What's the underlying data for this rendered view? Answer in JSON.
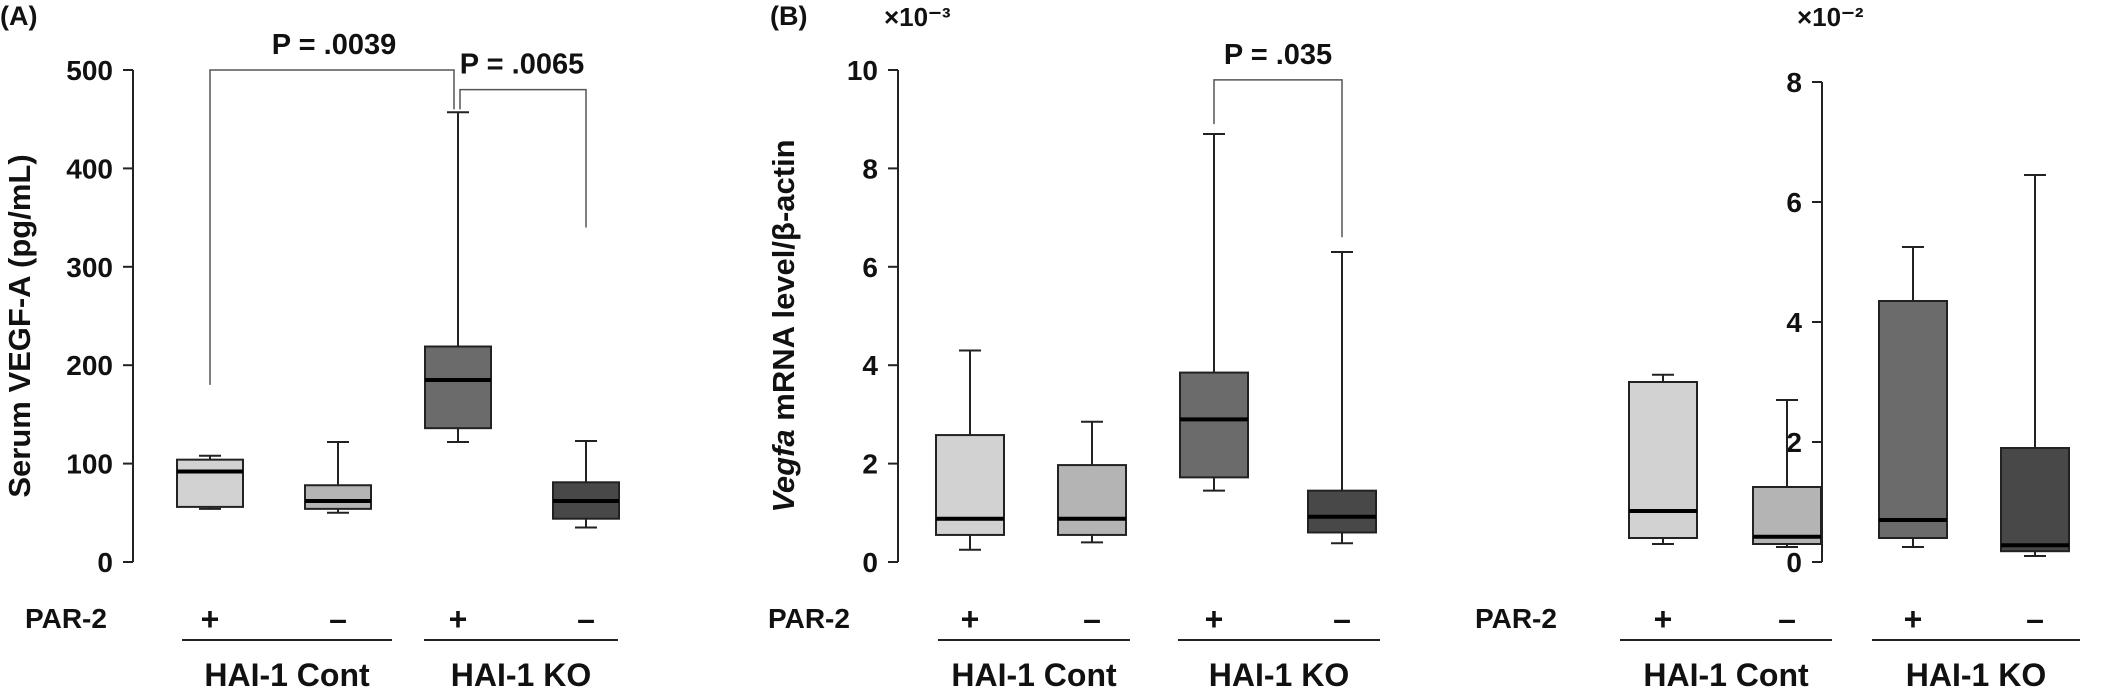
{
  "chart_data": [
    {
      "type": "box",
      "panel_label": "(A)",
      "ylabel": "Serum VEGF-A (pg/mL)",
      "exponent_label": "",
      "ylim": [
        0,
        500
      ],
      "yticks": [
        0,
        100,
        200,
        300,
        400,
        500
      ],
      "par2_label": "PAR-2",
      "categories": [
        "+",
        "–",
        "+",
        "–"
      ],
      "groups": [
        {
          "name": "HAI-1 Cont",
          "members": [
            0,
            1
          ]
        },
        {
          "name": "HAI-1 KO",
          "members": [
            2,
            3
          ]
        }
      ],
      "boxes": [
        {
          "min": 54,
          "q1": 56,
          "median": 92,
          "q3": 104,
          "max": 108,
          "color": "#d2d2d2"
        },
        {
          "min": 50,
          "q1": 54,
          "median": 62,
          "q3": 78,
          "max": 122,
          "color": "#b4b4b4"
        },
        {
          "min": 122,
          "q1": 136,
          "median": 185,
          "q3": 219,
          "max": 457,
          "color": "#6b6b6b"
        },
        {
          "min": 35,
          "q1": 44,
          "median": 62,
          "q3": 81,
          "max": 123,
          "color": "#484848"
        }
      ],
      "comparisons": [
        {
          "from": 0,
          "to": 2,
          "label": "P = .0039",
          "left_end": 180,
          "right_end": 460,
          "level": 500
        },
        {
          "from": 2,
          "to": 3,
          "label": "P = .0065",
          "left_end": 460,
          "right_end": 340,
          "level": 480
        }
      ]
    },
    {
      "type": "box",
      "panel_label": "(B)",
      "ylabel_italic": "Vegfa",
      "ylabel_rest": " mRNA level/β-actin",
      "exponent_label": "×10⁻³",
      "ylim": [
        0,
        10
      ],
      "yticks": [
        0,
        2,
        4,
        6,
        8,
        10
      ],
      "par2_label": "PAR-2",
      "categories": [
        "+",
        "–",
        "+",
        "–"
      ],
      "groups": [
        {
          "name": "HAI-1 Cont",
          "members": [
            0,
            1
          ]
        },
        {
          "name": "HAI-1 KO",
          "members": [
            2,
            3
          ]
        }
      ],
      "boxes": [
        {
          "min": 0.25,
          "q1": 0.55,
          "median": 0.88,
          "q3": 2.58,
          "max": 4.3,
          "color": "#d2d2d2"
        },
        {
          "min": 0.4,
          "q1": 0.55,
          "median": 0.88,
          "q3": 1.97,
          "max": 2.85,
          "color": "#b4b4b4"
        },
        {
          "min": 1.45,
          "q1": 1.72,
          "median": 2.9,
          "q3": 3.85,
          "max": 8.7,
          "color": "#6b6b6b"
        },
        {
          "min": 0.38,
          "q1": 0.6,
          "median": 0.92,
          "q3": 1.45,
          "max": 6.3,
          "color": "#484848"
        }
      ],
      "comparisons": [
        {
          "from": 2,
          "to": 3,
          "label": "P = .035",
          "left_end": 8.9,
          "right_end": 6.6,
          "level": 9.8
        }
      ]
    },
    {
      "type": "box",
      "panel_label": "",
      "ylabel": "",
      "exponent_label": "×10⁻²",
      "ylim": [
        0,
        8
      ],
      "yticks": [
        0,
        2,
        4,
        6,
        8
      ],
      "par2_label": "PAR-2",
      "categories": [
        "+",
        "–",
        "+",
        "–"
      ],
      "groups": [
        {
          "name": "HAI-1 Cont",
          "members": [
            0,
            1
          ]
        },
        {
          "name": "HAI-1 KO",
          "members": [
            2,
            3
          ]
        }
      ],
      "boxes": [
        {
          "min": 0.3,
          "q1": 0.4,
          "median": 0.85,
          "q3": 3.0,
          "max": 3.12,
          "color": "#d2d2d2"
        },
        {
          "min": 0.25,
          "q1": 0.3,
          "median": 0.42,
          "q3": 1.25,
          "max": 2.7,
          "color": "#b4b4b4"
        },
        {
          "min": 0.25,
          "q1": 0.4,
          "median": 0.7,
          "q3": 4.35,
          "max": 5.25,
          "color": "#6b6b6b"
        },
        {
          "min": 0.1,
          "q1": 0.18,
          "median": 0.28,
          "q3": 1.9,
          "max": 6.45,
          "color": "#484848"
        }
      ],
      "comparisons": []
    }
  ]
}
